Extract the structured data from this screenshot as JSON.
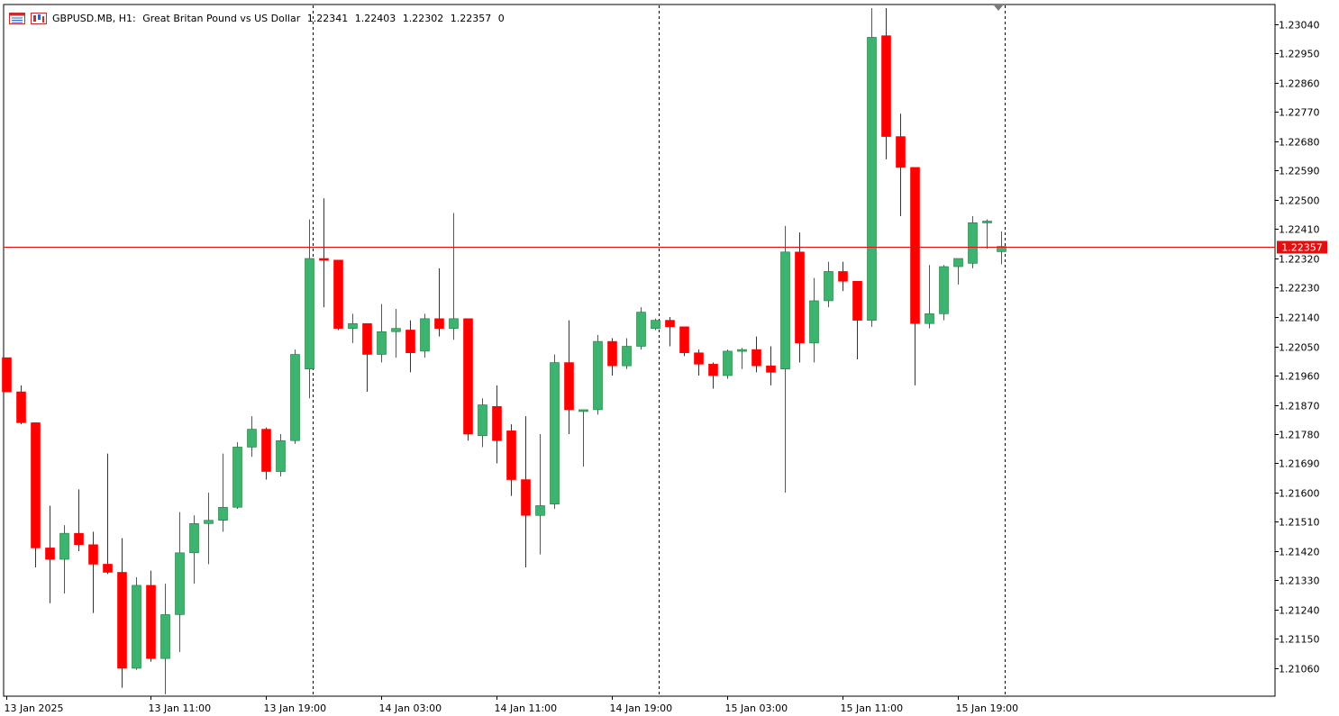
{
  "header": {
    "symbol": "GBPUSD.MB, H1:",
    "description": "Great Britan Pound vs US Dollar",
    "open": "1.22341",
    "high": "1.22403",
    "low": "1.22302",
    "close": "1.22357",
    "volume": "0",
    "icons": [
      "chart-window-icon",
      "candles-icon"
    ]
  },
  "price_tag": {
    "label": "1.22357",
    "value": 1.22357,
    "color": "#e01010"
  },
  "colors": {
    "bull": "#3cb371",
    "bear": "#ff0000",
    "wick_bull": "#1e7a3a",
    "wick_bear": "#b00000",
    "grid": "#000000",
    "price_line": "#e01010"
  },
  "chart_data": {
    "type": "candlestick",
    "symbol": "GBPUSD.MB",
    "timeframe": "H1",
    "ylim": [
      1.2099,
      1.231
    ],
    "y_ticks": [
      "1.23040",
      "1.22950",
      "1.22860",
      "1.22770",
      "1.22680",
      "1.22590",
      "1.22500",
      "1.22410",
      "1.22320",
      "1.22230",
      "1.22140",
      "1.22050",
      "1.21960",
      "1.21870",
      "1.21780",
      "1.21690",
      "1.21600",
      "1.21510",
      "1.21420",
      "1.21330",
      "1.21240",
      "1.21150",
      "1.21060"
    ],
    "x_ticks": [
      "13 Jan 2025",
      "13 Jan 11:00",
      "13 Jan 19:00",
      "14 Jan 03:00",
      "14 Jan 11:00",
      "14 Jan 19:00",
      "15 Jan 03:00",
      "15 Jan 11:00",
      "15 Jan 19:00"
    ],
    "period_separators": [
      "14 Jan 00:00",
      "15 Jan 00:00",
      "16 Jan 00:00"
    ],
    "candles": [
      {
        "o": 1.22015,
        "h": 1.22015,
        "l": 1.2191,
        "c": 1.2191
      },
      {
        "o": 1.2191,
        "h": 1.2193,
        "l": 1.2181,
        "c": 1.21815
      },
      {
        "o": 1.21815,
        "h": 1.21815,
        "l": 1.2137,
        "c": 1.2143
      },
      {
        "o": 1.2143,
        "h": 1.2156,
        "l": 1.2126,
        "c": 1.21395
      },
      {
        "o": 1.21395,
        "h": 1.215,
        "l": 1.2129,
        "c": 1.21475
      },
      {
        "o": 1.21475,
        "h": 1.2161,
        "l": 1.2142,
        "c": 1.2144
      },
      {
        "o": 1.2144,
        "h": 1.2148,
        "l": 1.2123,
        "c": 1.2138
      },
      {
        "o": 1.2138,
        "h": 1.2172,
        "l": 1.2135,
        "c": 1.21355
      },
      {
        "o": 1.21355,
        "h": 1.2146,
        "l": 1.21,
        "c": 1.2106
      },
      {
        "o": 1.2106,
        "h": 1.2134,
        "l": 1.21055,
        "c": 1.21315
      },
      {
        "o": 1.21315,
        "h": 1.2136,
        "l": 1.2108,
        "c": 1.2109
      },
      {
        "o": 1.2109,
        "h": 1.2132,
        "l": 1.2098,
        "c": 1.21225
      },
      {
        "o": 1.21225,
        "h": 1.2154,
        "l": 1.2111,
        "c": 1.21415
      },
      {
        "o": 1.21415,
        "h": 1.2153,
        "l": 1.2132,
        "c": 1.21505
      },
      {
        "o": 1.21505,
        "h": 1.216,
        "l": 1.2138,
        "c": 1.21515
      },
      {
        "o": 1.21515,
        "h": 1.2172,
        "l": 1.2148,
        "c": 1.21555
      },
      {
        "o": 1.21555,
        "h": 1.21755,
        "l": 1.2155,
        "c": 1.2174
      },
      {
        "o": 1.2174,
        "h": 1.21835,
        "l": 1.2171,
        "c": 1.21795
      },
      {
        "o": 1.21795,
        "h": 1.218,
        "l": 1.2164,
        "c": 1.21665
      },
      {
        "o": 1.21665,
        "h": 1.2178,
        "l": 1.2165,
        "c": 1.2176
      },
      {
        "o": 1.2176,
        "h": 1.2204,
        "l": 1.2175,
        "c": 1.22025
      },
      {
        "o": 1.2198,
        "h": 1.2244,
        "l": 1.2189,
        "c": 1.2232
      },
      {
        "o": 1.2232,
        "h": 1.22505,
        "l": 1.2217,
        "c": 1.22315
      },
      {
        "o": 1.22315,
        "h": 1.22315,
        "l": 1.221,
        "c": 1.22105
      },
      {
        "o": 1.22105,
        "h": 1.2215,
        "l": 1.2206,
        "c": 1.2212
      },
      {
        "o": 1.2212,
        "h": 1.2212,
        "l": 1.2191,
        "c": 1.22025
      },
      {
        "o": 1.22025,
        "h": 1.2218,
        "l": 1.22,
        "c": 1.22095
      },
      {
        "o": 1.22095,
        "h": 1.22165,
        "l": 1.22015,
        "c": 1.22105
      },
      {
        "o": 1.221,
        "h": 1.2213,
        "l": 1.2197,
        "c": 1.2203
      },
      {
        "o": 1.22035,
        "h": 1.2215,
        "l": 1.22015,
        "c": 1.22135
      },
      {
        "o": 1.22135,
        "h": 1.2229,
        "l": 1.2208,
        "c": 1.22105
      },
      {
        "o": 1.22105,
        "h": 1.2246,
        "l": 1.2207,
        "c": 1.22135
      },
      {
        "o": 1.22135,
        "h": 1.22135,
        "l": 1.2176,
        "c": 1.2178
      },
      {
        "o": 1.21775,
        "h": 1.2189,
        "l": 1.2174,
        "c": 1.2187
      },
      {
        "o": 1.21865,
        "h": 1.2193,
        "l": 1.2169,
        "c": 1.2176
      },
      {
        "o": 1.2179,
        "h": 1.2181,
        "l": 1.2159,
        "c": 1.2164
      },
      {
        "o": 1.2164,
        "h": 1.21835,
        "l": 1.2137,
        "c": 1.2153
      },
      {
        "o": 1.2153,
        "h": 1.2178,
        "l": 1.2141,
        "c": 1.2156
      },
      {
        "o": 1.21565,
        "h": 1.22025,
        "l": 1.2155,
        "c": 1.22
      },
      {
        "o": 1.22,
        "h": 1.2213,
        "l": 1.2178,
        "c": 1.21855
      },
      {
        "o": 1.2185,
        "h": 1.21855,
        "l": 1.2168,
        "c": 1.21855
      },
      {
        "o": 1.21855,
        "h": 1.22085,
        "l": 1.2184,
        "c": 1.22065
      },
      {
        "o": 1.22065,
        "h": 1.22075,
        "l": 1.2196,
        "c": 1.2199
      },
      {
        "o": 1.2199,
        "h": 1.22075,
        "l": 1.2198,
        "c": 1.2205
      },
      {
        "o": 1.2205,
        "h": 1.2217,
        "l": 1.2204,
        "c": 1.22155
      },
      {
        "o": 1.22105,
        "h": 1.22135,
        "l": 1.221,
        "c": 1.2213
      },
      {
        "o": 1.2213,
        "h": 1.2214,
        "l": 1.2205,
        "c": 1.2211
      },
      {
        "o": 1.2211,
        "h": 1.2211,
        "l": 1.2202,
        "c": 1.2203
      },
      {
        "o": 1.2203,
        "h": 1.2204,
        "l": 1.2196,
        "c": 1.21995
      },
      {
        "o": 1.21995,
        "h": 1.22,
        "l": 1.2192,
        "c": 1.2196
      },
      {
        "o": 1.2196,
        "h": 1.2204,
        "l": 1.2195,
        "c": 1.22035
      },
      {
        "o": 1.22035,
        "h": 1.22045,
        "l": 1.2198,
        "c": 1.2204
      },
      {
        "o": 1.2204,
        "h": 1.2208,
        "l": 1.2197,
        "c": 1.2199
      },
      {
        "o": 1.2199,
        "h": 1.2205,
        "l": 1.2193,
        "c": 1.2197
      },
      {
        "o": 1.2198,
        "h": 1.2242,
        "l": 1.216,
        "c": 1.2234
      },
      {
        "o": 1.2234,
        "h": 1.224,
        "l": 1.22,
        "c": 1.2206
      },
      {
        "o": 1.2206,
        "h": 1.2226,
        "l": 1.22,
        "c": 1.2219
      },
      {
        "o": 1.2219,
        "h": 1.2231,
        "l": 1.2217,
        "c": 1.2228
      },
      {
        "o": 1.2228,
        "h": 1.2231,
        "l": 1.2222,
        "c": 1.2225
      },
      {
        "o": 1.2225,
        "h": 1.2225,
        "l": 1.2201,
        "c": 1.2213
      },
      {
        "o": 1.2213,
        "h": 1.2309,
        "l": 1.2211,
        "c": 1.23
      },
      {
        "o": 1.23005,
        "h": 1.2309,
        "l": 1.22625,
        "c": 1.22695
      },
      {
        "o": 1.22695,
        "h": 1.22765,
        "l": 1.2245,
        "c": 1.226
      },
      {
        "o": 1.226,
        "h": 1.226,
        "l": 1.2193,
        "c": 1.2212
      },
      {
        "o": 1.2212,
        "h": 1.223,
        "l": 1.22105,
        "c": 1.2215
      },
      {
        "o": 1.2215,
        "h": 1.223,
        "l": 1.2213,
        "c": 1.22295
      },
      {
        "o": 1.22295,
        "h": 1.2232,
        "l": 1.2224,
        "c": 1.2232
      },
      {
        "o": 1.22305,
        "h": 1.2245,
        "l": 1.2229,
        "c": 1.2243
      },
      {
        "o": 1.22435,
        "h": 1.2244,
        "l": 1.2235,
        "c": 1.22435
      },
      {
        "o": 1.22341,
        "h": 1.22403,
        "l": 1.22302,
        "c": 1.22357
      }
    ]
  }
}
